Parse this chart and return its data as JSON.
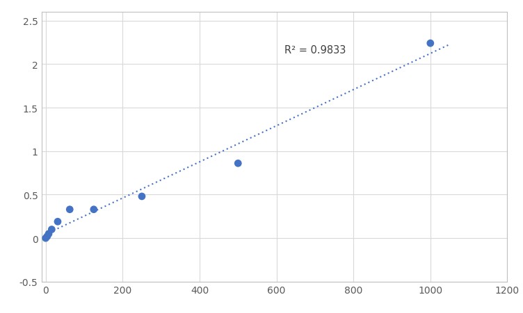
{
  "points_x": [
    0,
    3.9,
    7.8,
    15.6,
    31.25,
    62.5,
    125,
    250,
    500,
    1000
  ],
  "points_y": [
    0.0,
    0.02,
    0.05,
    0.1,
    0.19,
    0.33,
    0.33,
    0.48,
    0.86,
    2.24
  ],
  "r_squared": "R² = 0.9833",
  "r2_x": 620,
  "r2_y": 2.13,
  "dot_color": "#4472C4",
  "line_color": "#4472C4",
  "xlim": [
    -10,
    1200
  ],
  "ylim": [
    -0.5,
    2.6
  ],
  "xticks": [
    0,
    200,
    400,
    600,
    800,
    1000,
    1200
  ],
  "yticks": [
    -0.5,
    0.0,
    0.5,
    1.0,
    1.5,
    2.0,
    2.5
  ],
  "grid_color": "#D9D9D9",
  "background_color": "#FFFFFF",
  "marker_size": 60
}
